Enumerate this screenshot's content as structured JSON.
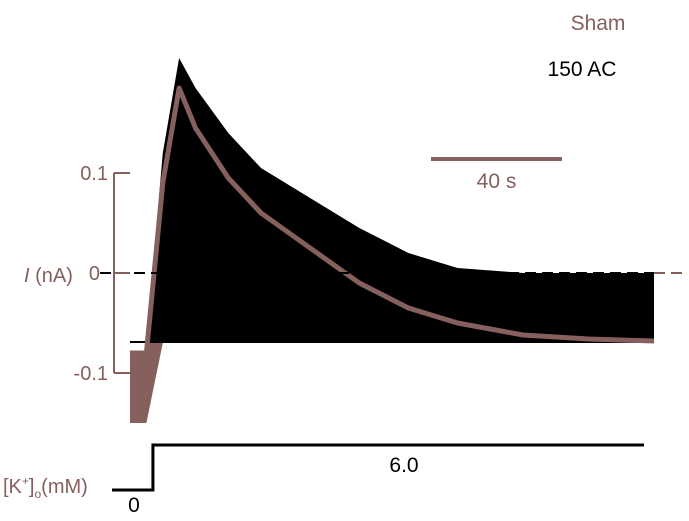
{
  "chart_data": {
    "type": "line",
    "title": "",
    "legend": {
      "placement": "top-right",
      "entries": [
        "Sham",
        "150 AC"
      ]
    },
    "series": [
      {
        "name": "Sham",
        "color": "#85605c",
        "envelope": {
          "t": [
            0,
            5,
            10,
            15,
            20,
            30,
            40,
            55,
            70,
            85,
            100,
            120,
            140,
            160
          ],
          "upper": [
            -0.08,
            -0.08,
            0.09,
            0.185,
            0.145,
            0.095,
            0.06,
            0.025,
            -0.01,
            -0.035,
            -0.05,
            -0.062,
            -0.066,
            -0.068
          ],
          "lower": [
            -0.15,
            -0.15,
            -0.07,
            -0.07,
            -0.07,
            -0.07,
            -0.07,
            -0.07,
            -0.07,
            -0.07,
            -0.07,
            -0.07,
            -0.07,
            -0.07
          ]
        }
      },
      {
        "name": "150 AC",
        "color": "#000000",
        "envelope": {
          "t": [
            0,
            5,
            10,
            15,
            20,
            30,
            40,
            55,
            70,
            85,
            100,
            120,
            140,
            160
          ],
          "upper": [
            -0.068,
            -0.068,
            0.12,
            0.215,
            0.185,
            0.14,
            0.105,
            0.075,
            0.045,
            0.02,
            0.005,
            0.0,
            0.0,
            0.0
          ],
          "lower": [
            -0.07,
            -0.07,
            -0.07,
            -0.07,
            -0.07,
            -0.07,
            -0.07,
            -0.07,
            -0.07,
            -0.07,
            -0.07,
            -0.07,
            -0.07,
            -0.07
          ]
        }
      }
    ],
    "y_axis": {
      "ticks": [
        {
          "value": 0.1,
          "label": "0.1"
        },
        {
          "value": 0,
          "label": "0"
        },
        {
          "value": -0.1,
          "label": "-0.1"
        }
      ],
      "label_italic": "I",
      "label_rest": " (nA)",
      "range": [
        -0.16,
        0.23
      ]
    },
    "time_range_s": [
      0,
      160
    ],
    "scale_bar": {
      "label": "40 s",
      "duration_s": 40
    },
    "zero_line": "dashed",
    "potassium": {
      "label_base": "[K",
      "label_sup": "+",
      "label_close": "]",
      "label_sub": "o",
      "label_unit": "(mM)",
      "baseline_label": "0",
      "step_label": "6.0",
      "step_start_s": 7,
      "baseline_value": 0,
      "step_value": 6.0
    }
  }
}
